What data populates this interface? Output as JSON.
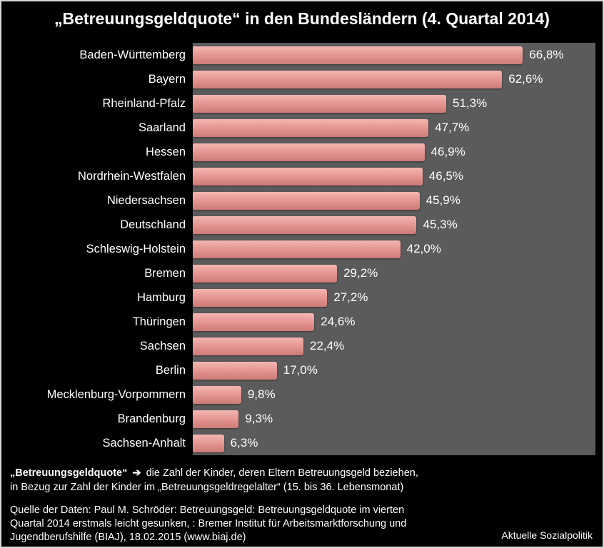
{
  "title": "„Betreuungsgeldquote“ in den Bundesländern (4. Quartal 2014)",
  "chart_data": {
    "type": "bar",
    "orientation": "horizontal",
    "title": "„Betreuungsgeldquote“ in den Bundesländern (4. Quartal 2014)",
    "categories": [
      "Baden-Württemberg",
      "Bayern",
      "Rheinland-Pfalz",
      "Saarland",
      "Hessen",
      "Nordrhein-Westfalen",
      "Niedersachsen",
      "Deutschland",
      "Schleswig-Holstein",
      "Bremen",
      "Hamburg",
      "Thüringen",
      "Sachsen",
      "Berlin",
      "Mecklenburg-Vorpommern",
      "Brandenburg",
      "Sachsen-Anhalt"
    ],
    "values": [
      66.8,
      62.6,
      51.3,
      47.7,
      46.9,
      46.5,
      45.9,
      45.3,
      42.0,
      29.2,
      27.2,
      24.6,
      22.4,
      17.0,
      9.8,
      9.3,
      6.3
    ],
    "value_labels": [
      "66,8%",
      "62,6%",
      "51,3%",
      "47,7%",
      "46,9%",
      "46,5%",
      "45,9%",
      "45,3%",
      "42,0%",
      "29,2%",
      "27,2%",
      "24,6%",
      "22,4%",
      "17,0%",
      "9,8%",
      "9,3%",
      "6,3%"
    ],
    "xlabel": "",
    "ylabel": "",
    "xlim": [
      0,
      81.5
    ],
    "grid": false,
    "legend": "none",
    "bar_color": "#e0908c",
    "plot_background": "#5b5b5b",
    "page_background": "#000000"
  },
  "footnote": {
    "bold_lead": "„Betreuungsgeldquote“",
    "arrow": "➔",
    "line1_rest": " die Zahl der Kinder, deren Eltern Betreuungsgeld beziehen,",
    "line2": "in Bezug zur Zahl der Kinder im „Betreuungsgeldregelalter“ (15. bis 36. Lebensmonat)"
  },
  "source": "Quelle der Daten: Paul M. Schröder: Betreuungsgeld: Betreuungsgeldquote im vierten Quartal 2014 erstmals leicht gesunken, : Bremer Institut für Arbeitsmarktforschung und Jugendberufshilfe (BIAJ), 18.02.2015 (www.biaj.de)",
  "brand": "Aktuelle Sozialpolitik"
}
